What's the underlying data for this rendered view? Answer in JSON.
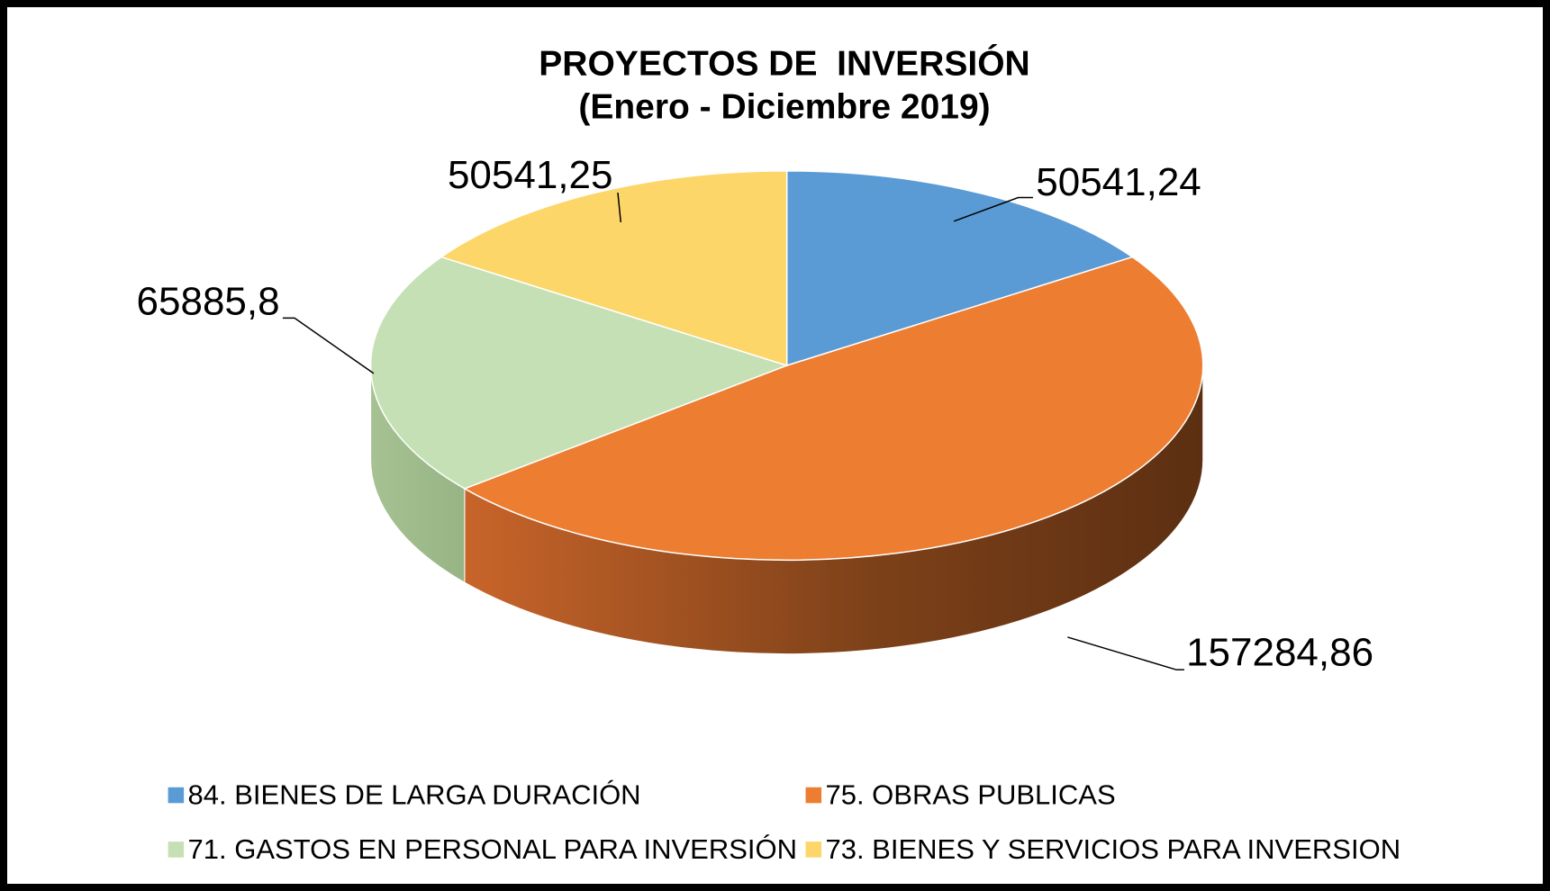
{
  "chart_data": {
    "type": "pie3d",
    "title": "PROYECTOS DE  INVERSIÓN",
    "subtitle": "(Enero - Diciembre 2019)",
    "categories": [
      "84. BIENES DE LARGA DURACIÓN",
      "75. OBRAS PUBLICAS",
      "71. GASTOS EN PERSONAL PARA INVERSIÓN",
      "73. BIENES Y SERVICIOS PARA INVERSION"
    ],
    "values": [
      50541.24,
      157284.86,
      65885.8,
      50541.25
    ],
    "value_labels": [
      "50541,24",
      "157284,86",
      "65885,8",
      "50541,25"
    ],
    "colors": [
      "#5b9bd5",
      "#ed7d31",
      "#c5e0b4",
      "#fcd669"
    ],
    "legend": "bottom"
  }
}
